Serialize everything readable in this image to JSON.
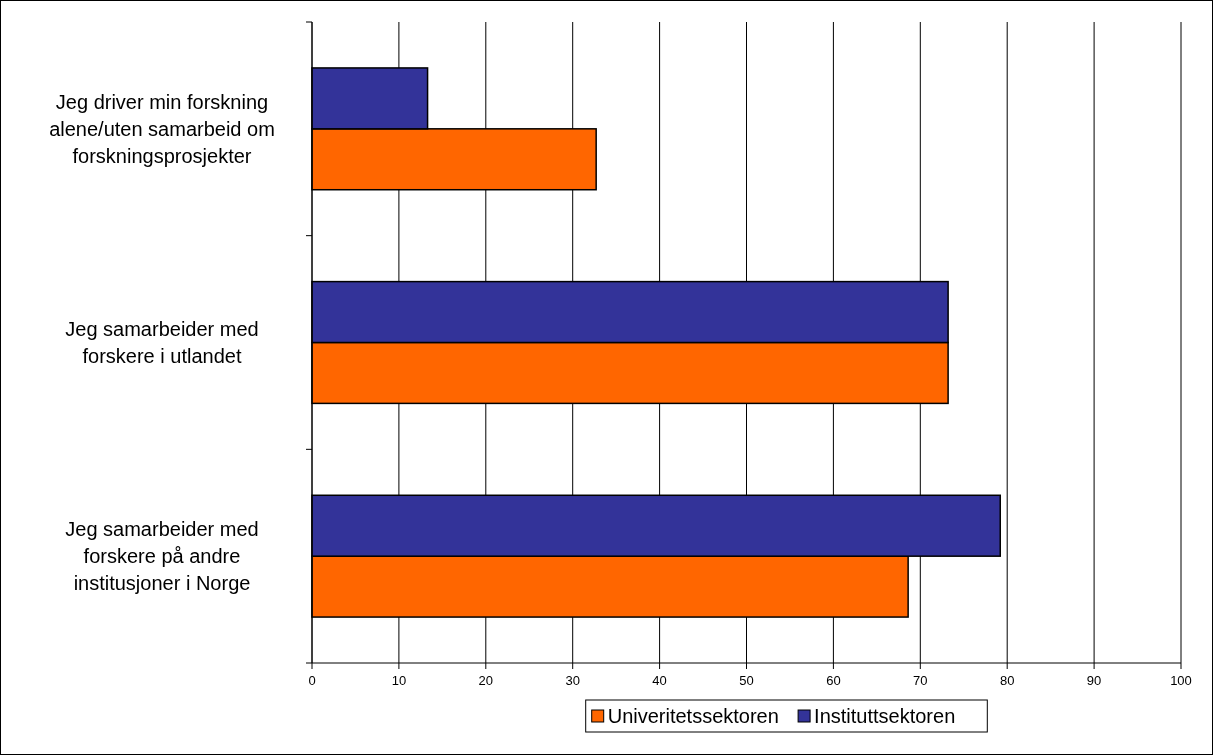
{
  "chart_data": {
    "type": "bar",
    "orientation": "horizontal",
    "categories": [
      "Jeg driver min forskning alene/uten samarbeid om forskningsprosjekter",
      "Jeg samarbeider med forskere i utlandet",
      "Jeg samarbeider med forskere på andre institusjoner i Norge"
    ],
    "series": [
      {
        "name": "Univeritetssektoren",
        "color": "#ff6600",
        "values": [
          32.7,
          73.2,
          68.6
        ]
      },
      {
        "name": "Instituttsektoren",
        "color": "#333399",
        "values": [
          13.3,
          73.2,
          79.2
        ]
      }
    ],
    "xlim": [
      0,
      100
    ],
    "xticks": [
      0,
      10,
      20,
      30,
      40,
      50,
      60,
      70,
      80,
      90,
      100
    ],
    "grid": "x",
    "legend": "bottom"
  }
}
